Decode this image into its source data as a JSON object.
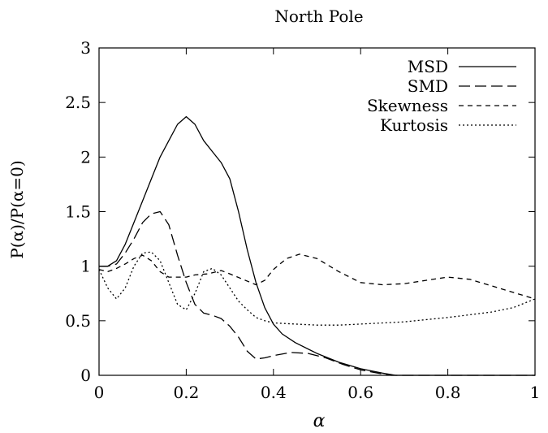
{
  "chart_data": {
    "type": "line",
    "title": "North Pole",
    "xlabel": "α",
    "ylabel": "P(α)/P(α=0)",
    "xlim": [
      0,
      1
    ],
    "ylim": [
      0,
      3
    ],
    "xticks": [
      0,
      0.2,
      0.4,
      0.6,
      0.8,
      1
    ],
    "xtick_labels": [
      "0",
      "0.2",
      "0.4",
      "0.6",
      "0.8",
      "1"
    ],
    "yticks": [
      0,
      0.5,
      1,
      1.5,
      2,
      2.5,
      3
    ],
    "ytick_labels": [
      "0",
      "0.5",
      "1",
      "1.5",
      "2",
      "2.5",
      "3"
    ],
    "grid": false,
    "legend_position": "top-right",
    "series": [
      {
        "name": "MSD",
        "dash": "solid",
        "x": [
          0,
          0.02,
          0.04,
          0.06,
          0.08,
          0.1,
          0.12,
          0.14,
          0.16,
          0.18,
          0.2,
          0.22,
          0.24,
          0.26,
          0.28,
          0.3,
          0.32,
          0.34,
          0.36,
          0.38,
          0.4,
          0.42,
          0.45,
          0.5,
          0.55,
          0.6,
          0.65,
          0.68,
          0.7,
          1
        ],
        "y": [
          1,
          1.0,
          1.05,
          1.2,
          1.4,
          1.6,
          1.8,
          2.0,
          2.15,
          2.3,
          2.37,
          2.3,
          2.15,
          2.05,
          1.95,
          1.8,
          1.5,
          1.15,
          0.85,
          0.62,
          0.47,
          0.38,
          0.3,
          0.2,
          0.12,
          0.06,
          0.02,
          0.0,
          0.0,
          0.0
        ]
      },
      {
        "name": "SMD",
        "dash": "dashed",
        "x": [
          0,
          0.02,
          0.04,
          0.06,
          0.08,
          0.1,
          0.12,
          0.14,
          0.16,
          0.18,
          0.2,
          0.22,
          0.24,
          0.26,
          0.28,
          0.3,
          0.32,
          0.34,
          0.36,
          0.38,
          0.4,
          0.44,
          0.48,
          0.52,
          0.56,
          0.6,
          0.64,
          0.67,
          0.7,
          1
        ],
        "y": [
          1,
          1.0,
          1.02,
          1.12,
          1.25,
          1.4,
          1.48,
          1.5,
          1.38,
          1.1,
          0.85,
          0.65,
          0.57,
          0.55,
          0.52,
          0.45,
          0.35,
          0.22,
          0.15,
          0.16,
          0.18,
          0.21,
          0.2,
          0.16,
          0.1,
          0.05,
          0.02,
          0.0,
          0.0,
          0.0
        ]
      },
      {
        "name": "Skewness",
        "dash": "short-dashed",
        "x": [
          0,
          0.02,
          0.04,
          0.06,
          0.08,
          0.1,
          0.12,
          0.14,
          0.16,
          0.18,
          0.2,
          0.22,
          0.25,
          0.28,
          0.3,
          0.33,
          0.36,
          0.38,
          0.4,
          0.43,
          0.46,
          0.5,
          0.55,
          0.6,
          0.65,
          0.7,
          0.75,
          0.8,
          0.85,
          0.9,
          0.95,
          1
        ],
        "y": [
          0.97,
          0.95,
          0.98,
          1.02,
          1.07,
          1.1,
          1.05,
          0.95,
          0.9,
          0.9,
          0.9,
          0.92,
          0.93,
          0.96,
          0.93,
          0.88,
          0.83,
          0.87,
          0.97,
          1.07,
          1.11,
          1.07,
          0.95,
          0.85,
          0.83,
          0.84,
          0.87,
          0.9,
          0.88,
          0.82,
          0.76,
          0.7
        ]
      },
      {
        "name": "Kurtosis",
        "dash": "dotted",
        "x": [
          0,
          0.02,
          0.04,
          0.06,
          0.08,
          0.1,
          0.12,
          0.14,
          0.16,
          0.18,
          0.2,
          0.22,
          0.24,
          0.26,
          0.28,
          0.3,
          0.32,
          0.34,
          0.36,
          0.38,
          0.4,
          0.45,
          0.5,
          0.55,
          0.6,
          0.7,
          0.8,
          0.9,
          0.95,
          1
        ],
        "y": [
          0.97,
          0.8,
          0.7,
          0.8,
          1.0,
          1.12,
          1.13,
          1.05,
          0.85,
          0.65,
          0.6,
          0.75,
          0.95,
          0.98,
          0.92,
          0.8,
          0.68,
          0.6,
          0.53,
          0.5,
          0.48,
          0.47,
          0.46,
          0.46,
          0.47,
          0.49,
          0.53,
          0.58,
          0.62,
          0.7
        ]
      }
    ]
  }
}
